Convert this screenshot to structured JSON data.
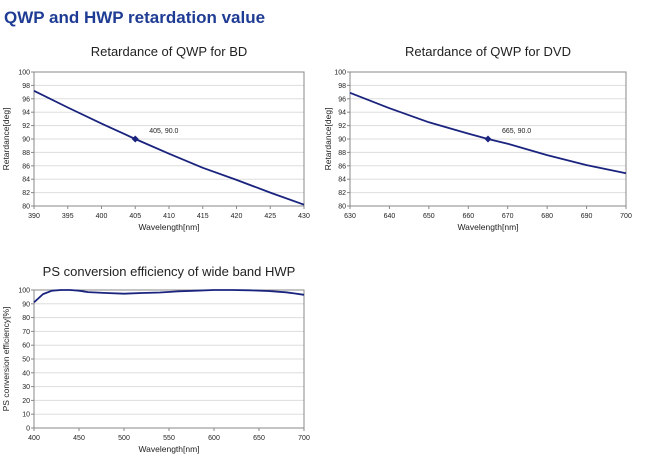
{
  "page": {
    "title": "QWP and HWP retardation value"
  },
  "colors": {
    "line": "#1a237e",
    "grid": "#dddddd",
    "axis": "#888888"
  },
  "chart_data": [
    {
      "id": "bd",
      "type": "line",
      "title": "Retardance of QWP for BD",
      "xlabel": "Wavelength[nm]",
      "ylabel": "Retardance[deg]",
      "xlim": [
        390,
        430
      ],
      "ylim": [
        80,
        100
      ],
      "xticks": [
        390,
        395,
        400,
        405,
        410,
        415,
        420,
        425,
        430
      ],
      "yticks": [
        80,
        82,
        84,
        86,
        88,
        90,
        92,
        94,
        96,
        98,
        100
      ],
      "grid": "horizontal",
      "series": [
        {
          "x": [
            390,
            395,
            400,
            405,
            410,
            415,
            420,
            425,
            430
          ],
          "y": [
            97.2,
            94.7,
            92.3,
            90.0,
            87.8,
            85.7,
            83.9,
            82.0,
            80.2
          ]
        }
      ],
      "marker": {
        "x": 405,
        "y": 90.0,
        "label": "405, 90.0"
      }
    },
    {
      "id": "dvd",
      "type": "line",
      "title": "Retardance of QWP for DVD",
      "xlabel": "Wavelength[nm]",
      "ylabel": "Retardance[deg]",
      "xlim": [
        630,
        700
      ],
      "ylim": [
        80,
        100
      ],
      "xticks": [
        630,
        640,
        650,
        660,
        670,
        680,
        690,
        700
      ],
      "yticks": [
        80,
        82,
        84,
        86,
        88,
        90,
        92,
        94,
        96,
        98,
        100
      ],
      "grid": "horizontal",
      "series": [
        {
          "x": [
            630,
            640,
            650,
            660,
            665,
            670,
            680,
            690,
            700
          ],
          "y": [
            96.9,
            94.6,
            92.5,
            90.8,
            90.0,
            89.3,
            87.6,
            86.1,
            84.9
          ]
        }
      ],
      "marker": {
        "x": 665,
        "y": 90.0,
        "label": "665, 90.0"
      }
    },
    {
      "id": "hwp",
      "type": "line",
      "title": "PS conversion efficiency of wide band HWP",
      "xlabel": "Wavelength[nm]",
      "ylabel": "PS conversion efficiency[%]",
      "xlim": [
        400,
        700
      ],
      "ylim": [
        0,
        100
      ],
      "xticks": [
        400,
        450,
        500,
        550,
        600,
        650,
        700
      ],
      "yticks": [
        0,
        10,
        20,
        30,
        40,
        50,
        60,
        70,
        80,
        90,
        100
      ],
      "grid": "horizontal",
      "series": [
        {
          "x": [
            400,
            410,
            420,
            430,
            440,
            450,
            460,
            480,
            500,
            520,
            540,
            560,
            580,
            600,
            620,
            640,
            660,
            680,
            690,
            700
          ],
          "y": [
            91,
            97,
            99.5,
            100,
            100,
            99.5,
            98.5,
            97.8,
            97.3,
            97.8,
            98.2,
            99,
            99.5,
            100,
            100,
            99.8,
            99.3,
            98.3,
            97.5,
            96.5
          ]
        }
      ]
    }
  ]
}
